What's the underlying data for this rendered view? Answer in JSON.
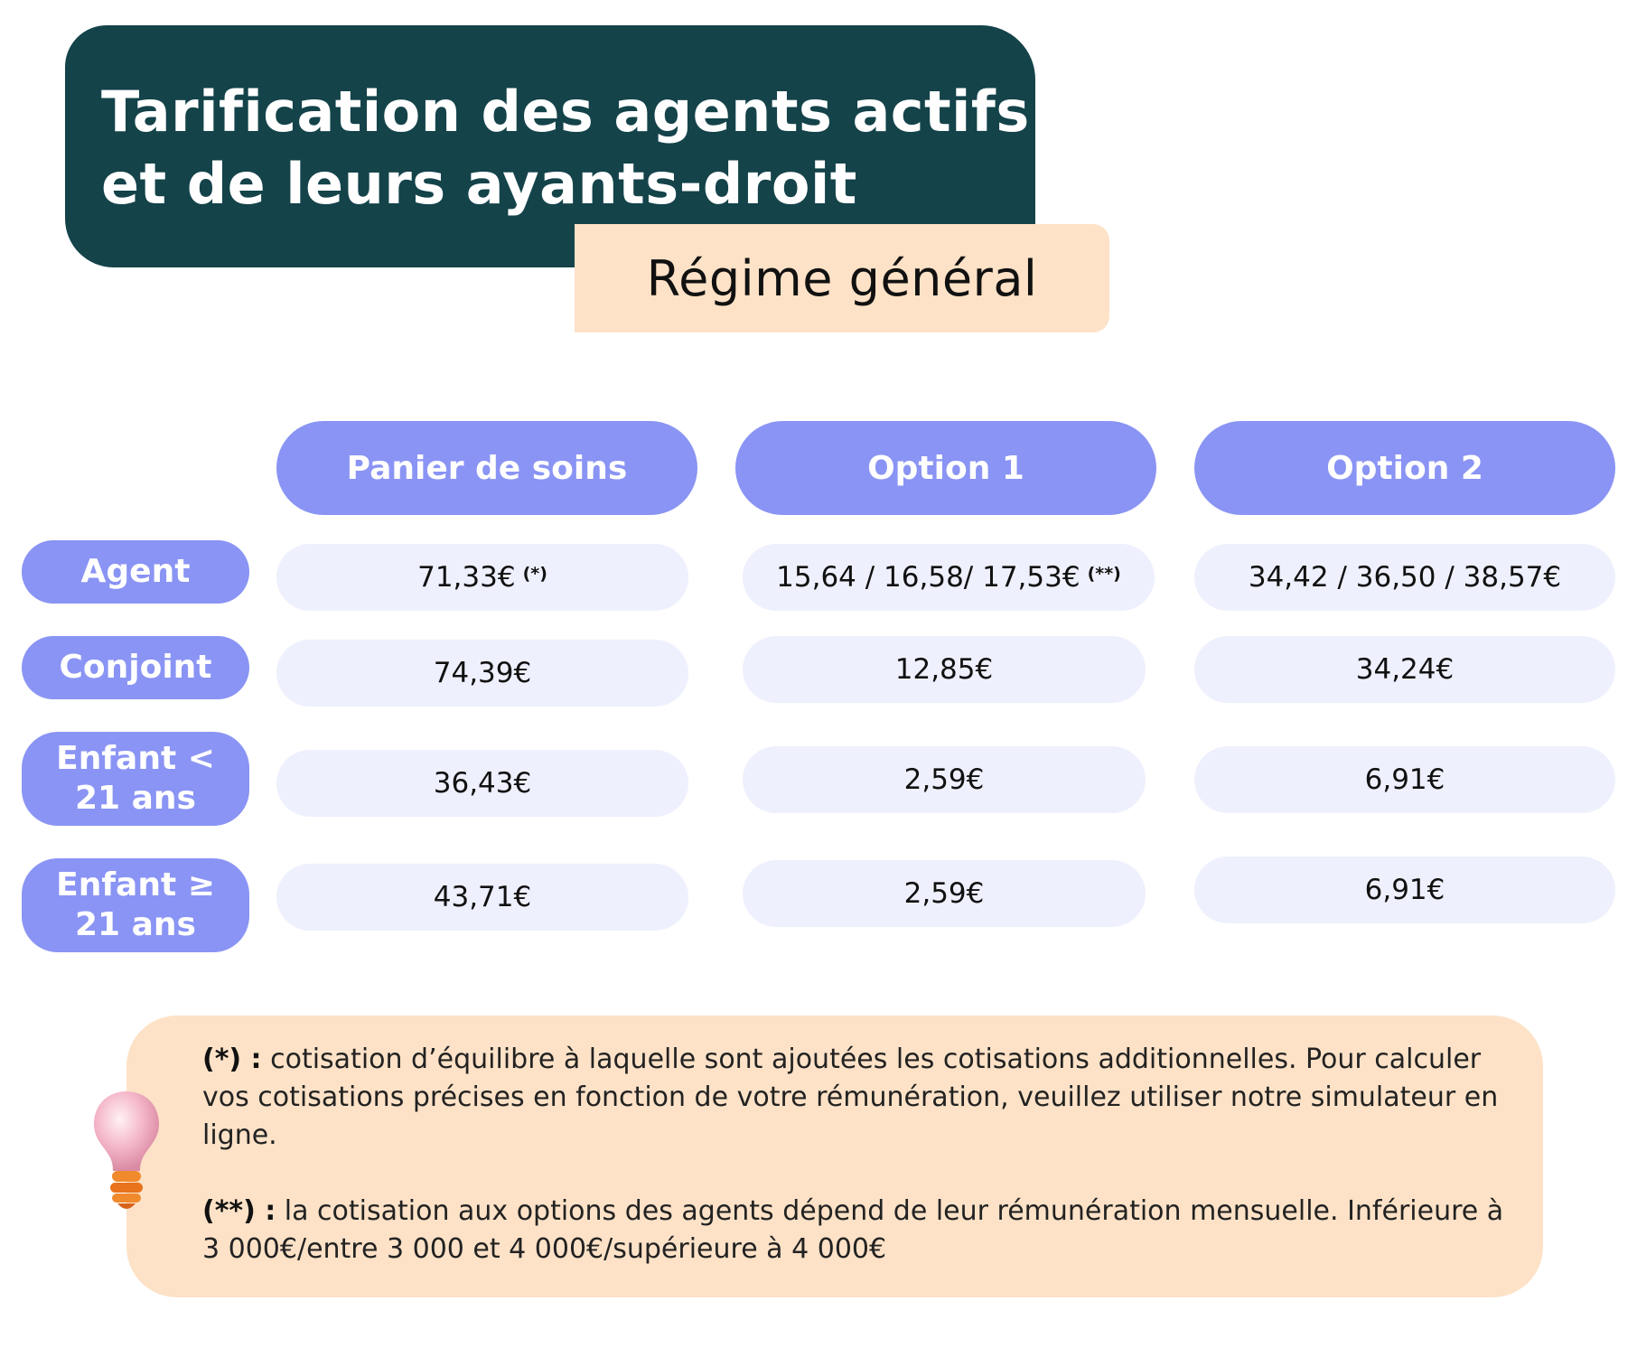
{
  "header": {
    "title_line1": "Tarification des agents actifs",
    "title_line2": "et de leurs ayants-droit",
    "subtitle": "Régime général"
  },
  "table": {
    "columns": [
      "Panier de soins",
      "Option 1",
      "Option 2"
    ],
    "rows": [
      {
        "label": "Agent",
        "cells": [
          {
            "value": "71,33€",
            "note": "(*)"
          },
          {
            "value": "15,64 / 16,58/ 17,53€",
            "note": "(**)"
          },
          {
            "value": "34,42 / 36,50 / 38,57€",
            "note": ""
          }
        ]
      },
      {
        "label": "Conjoint",
        "cells": [
          {
            "value": "74,39€",
            "note": ""
          },
          {
            "value": "12,85€",
            "note": ""
          },
          {
            "value": "34,24€",
            "note": ""
          }
        ]
      },
      {
        "label": "Enfant <\n21 ans",
        "cells": [
          {
            "value": "36,43€",
            "note": ""
          },
          {
            "value": "2,59€",
            "note": ""
          },
          {
            "value": "6,91€",
            "note": ""
          }
        ]
      },
      {
        "label": "Enfant ≥\n21 ans",
        "cells": [
          {
            "value": "43,71€",
            "note": ""
          },
          {
            "value": "2,59€",
            "note": ""
          },
          {
            "value": "6,91€",
            "note": ""
          }
        ]
      }
    ]
  },
  "notes": [
    {
      "marker": "(*) :",
      "text": " cotisation d’équilibre à laquelle sont ajoutées les cotisations additionnelles. Pour calculer vos cotisations précises en fonction de votre rémunération, veuillez utiliser notre simulateur en ligne."
    },
    {
      "marker": "(**) :",
      "text": " la cotisation aux options des agents dépend de leur rémunération mensuelle. Inférieure à 3 000€/entre 3 000 et 4 000€/supérieure à 4 000€"
    }
  ],
  "icons": {
    "note_icon": "lightbulb-icon"
  },
  "colors": {
    "title_bg": "#14434a",
    "accent_peach": "#fde2c7",
    "header_pill": "#8a94f4",
    "cell_bg": "#eef0fd"
  }
}
